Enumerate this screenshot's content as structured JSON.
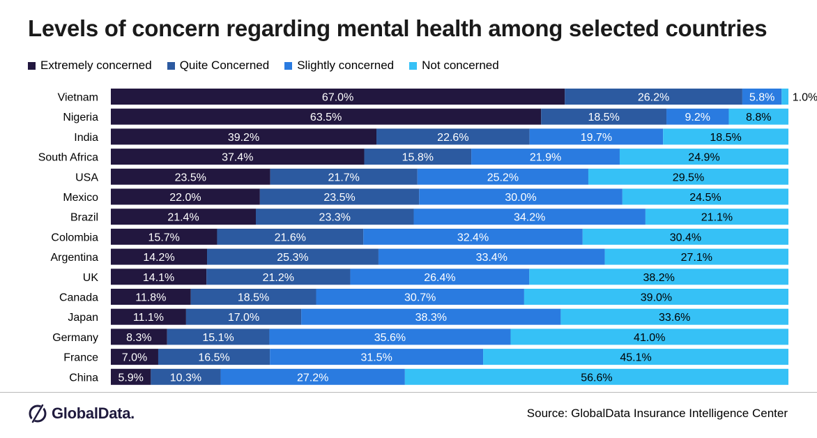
{
  "title": "Levels of concern regarding mental health among selected countries",
  "source": "Source: GlobalData Insurance Intelligence Center",
  "logo_text": "GlobalData.",
  "legend": [
    {
      "label": "Extremely concerned",
      "color": "#22173f"
    },
    {
      "label": "Quite Concerned",
      "color": "#2c5aa0"
    },
    {
      "label": "Slightly concerned",
      "color": "#2a7be0"
    },
    {
      "label": "Not concerned",
      "color": "#36c1f6"
    }
  ],
  "chart_data": {
    "type": "bar",
    "orientation": "horizontal",
    "stacked": true,
    "percent_stacked": true,
    "categories": [
      "Vietnam",
      "Nigeria",
      "India",
      "South Africa",
      "USA",
      "Mexico",
      "Brazil",
      "Colombia",
      "Argentina",
      "UK",
      "Canada",
      "Japan",
      "Germany",
      "France",
      "China"
    ],
    "series": [
      {
        "name": "Extremely concerned",
        "color": "#22173f",
        "values": [
          67.0,
          63.5,
          39.2,
          37.4,
          23.5,
          22.0,
          21.4,
          15.7,
          14.2,
          14.1,
          11.8,
          11.1,
          8.3,
          7.0,
          5.9
        ]
      },
      {
        "name": "Quite Concerned",
        "color": "#2c5aa0",
        "values": [
          26.2,
          18.5,
          22.6,
          15.8,
          21.7,
          23.5,
          23.3,
          21.6,
          25.3,
          21.2,
          18.5,
          17.0,
          15.1,
          16.5,
          10.3
        ]
      },
      {
        "name": "Slightly concerned",
        "color": "#2a7be0",
        "values": [
          5.8,
          9.2,
          19.7,
          21.9,
          25.2,
          30.0,
          34.2,
          32.4,
          33.4,
          26.4,
          30.7,
          38.3,
          35.6,
          31.5,
          27.2
        ]
      },
      {
        "name": "Not concerned",
        "color": "#36c1f6",
        "values": [
          1.0,
          8.8,
          18.5,
          24.9,
          29.5,
          24.5,
          21.1,
          30.4,
          27.1,
          38.2,
          39.0,
          33.6,
          41.0,
          45.1,
          56.6
        ]
      }
    ],
    "data_labels": true,
    "label_format": "0.0%",
    "legend_position": "top-left",
    "grid": false
  }
}
